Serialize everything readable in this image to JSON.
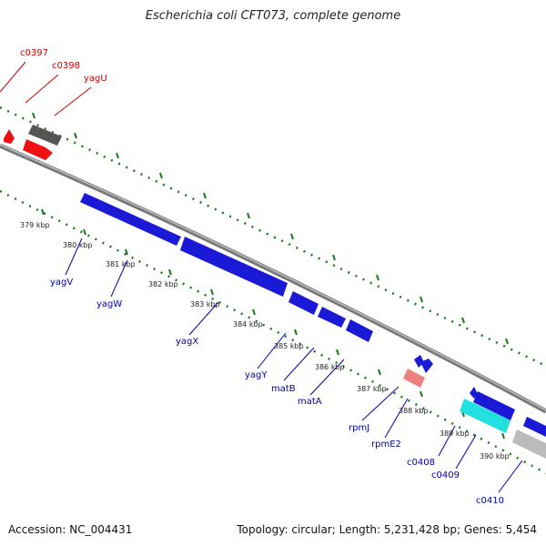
{
  "title": "Escherichia coli CFT073, complete genome",
  "footer": {
    "accession": "Accession: NC_004431",
    "summary": "Topology: circular; Length: 5,231,428 bp; Genes: 5,454"
  },
  "colors": {
    "backbone": "#888888",
    "dots": "#1a7a1a",
    "forward_label": "#cc0000",
    "reverse_label": "#0000aa",
    "gene_blue": "#1a1ad6",
    "gene_red": "#ee1111",
    "gene_gray": "#666666",
    "gene_pink": "#ee8080",
    "gene_cyan": "#22e0e0",
    "gene_lightgray": "#bbbbbb"
  },
  "ticks": [
    "379 kbp",
    "380 kbp",
    "381 kbp",
    "382 kbp",
    "383 kbp",
    "384 kbp",
    "385 kbp",
    "386 kbp",
    "387 kbp",
    "388 kbp",
    "389 kbp",
    "390 kbp"
  ],
  "labels_top": [
    "c0397",
    "c0398",
    "yagU"
  ],
  "labels_bottom": [
    "yagV",
    "yagW",
    "yagX",
    "yagY",
    "matB",
    "matA",
    "rpmJ",
    "rpmE2",
    "c0408",
    "c0409",
    "c0410"
  ]
}
